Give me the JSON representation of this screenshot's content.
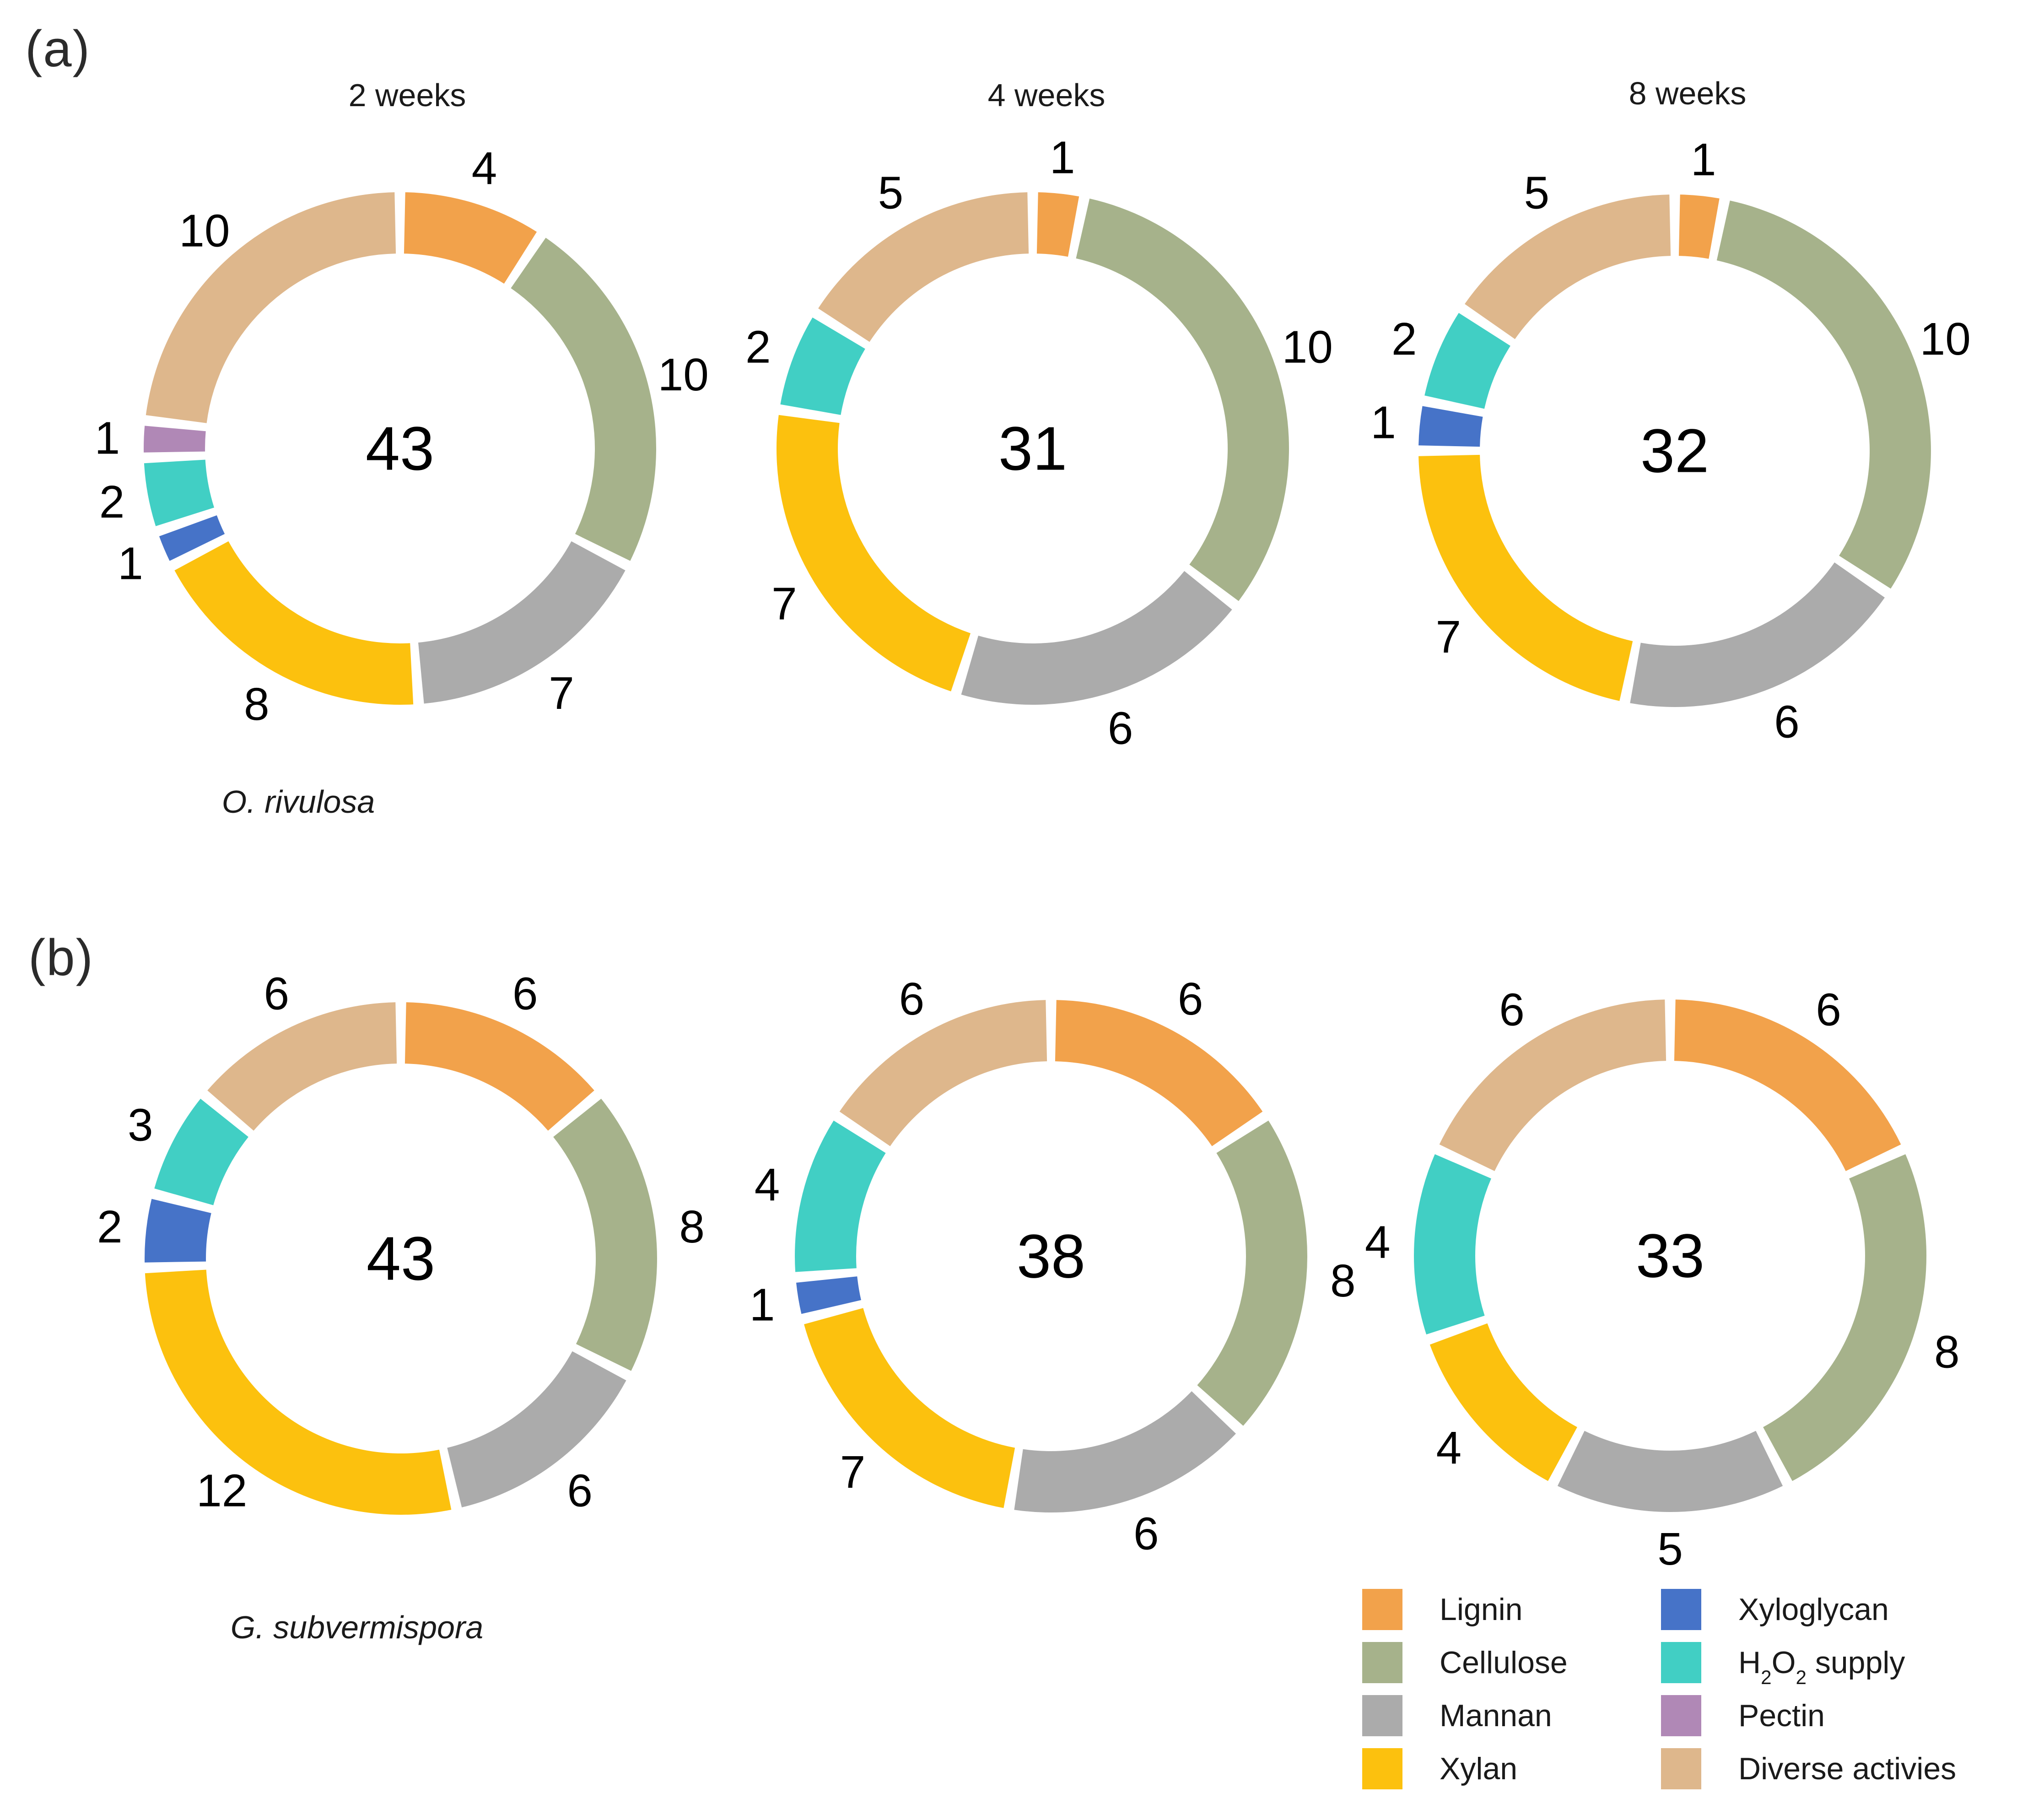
{
  "figure": {
    "panels": {
      "a": {
        "label": "(a)",
        "species": "O. rivulosa"
      },
      "b": {
        "label": "(b)",
        "species": "G. subvermispora"
      }
    }
  },
  "palette": {
    "Lignin": "#F2A24B",
    "Cellulose": "#A6B28B",
    "Mannan": "#ABABAB",
    "Xylan": "#FCC10E",
    "Xyloglycan": "#4673C8",
    "H₂O₂ supply": "#41CFC4",
    "Pectin": "#B088B6",
    "Diverse activies": "#DEB78C"
  },
  "legend": {
    "columns": [
      [
        "Lignin",
        "Cellulose",
        "Mannan",
        "Xylan"
      ],
      [
        "Xyloglycan",
        "H₂O₂ supply",
        "Pectin",
        "Diverse activies"
      ]
    ]
  },
  "chart_data": [
    {
      "type": "donut",
      "panel": "a",
      "title": "2 weeks",
      "total": 43,
      "segments": [
        {
          "category": "Lignin",
          "value": 4
        },
        {
          "category": "Cellulose",
          "value": 10
        },
        {
          "category": "Mannan",
          "value": 7
        },
        {
          "category": "Xylan",
          "value": 8
        },
        {
          "category": "Xyloglycan",
          "value": 1
        },
        {
          "category": "H₂O₂ supply",
          "value": 2
        },
        {
          "category": "Pectin",
          "value": 1
        },
        {
          "category": "Diverse activies",
          "value": 10
        }
      ]
    },
    {
      "type": "donut",
      "panel": "a",
      "title": "4 weeks",
      "total": 31,
      "segments": [
        {
          "category": "Lignin",
          "value": 1
        },
        {
          "category": "Cellulose",
          "value": 10
        },
        {
          "category": "Mannan",
          "value": 6
        },
        {
          "category": "Xylan",
          "value": 7
        },
        {
          "category": "H₂O₂ supply",
          "value": 2
        },
        {
          "category": "Diverse activies",
          "value": 5
        }
      ]
    },
    {
      "type": "donut",
      "panel": "a",
      "title": "8 weeks",
      "total": 32,
      "segments": [
        {
          "category": "Lignin",
          "value": 1
        },
        {
          "category": "Cellulose",
          "value": 10
        },
        {
          "category": "Mannan",
          "value": 6
        },
        {
          "category": "Xylan",
          "value": 7
        },
        {
          "category": "Xyloglycan",
          "value": 1
        },
        {
          "category": "H₂O₂ supply",
          "value": 2
        },
        {
          "category": "Diverse activies",
          "value": 5
        }
      ]
    },
    {
      "type": "donut",
      "panel": "b",
      "title": "",
      "total": 43,
      "segments": [
        {
          "category": "Lignin",
          "value": 6
        },
        {
          "category": "Cellulose",
          "value": 8
        },
        {
          "category": "Mannan",
          "value": 6
        },
        {
          "category": "Xylan",
          "value": 12
        },
        {
          "category": "Xyloglycan",
          "value": 2
        },
        {
          "category": "H₂O₂ supply",
          "value": 3
        },
        {
          "category": "Diverse activies",
          "value": 6
        }
      ]
    },
    {
      "type": "donut",
      "panel": "b",
      "title": "",
      "total": 38,
      "segments": [
        {
          "category": "Lignin",
          "value": 6
        },
        {
          "category": "Cellulose",
          "value": 8
        },
        {
          "category": "Mannan",
          "value": 6
        },
        {
          "category": "Xylan",
          "value": 7
        },
        {
          "category": "Xyloglycan",
          "value": 1
        },
        {
          "category": "H₂O₂ supply",
          "value": 4
        },
        {
          "category": "Diverse activies",
          "value": 6
        }
      ]
    },
    {
      "type": "donut",
      "panel": "b",
      "title": "",
      "total": 33,
      "segments": [
        {
          "category": "Lignin",
          "value": 6
        },
        {
          "category": "Cellulose",
          "value": 8
        },
        {
          "category": "Mannan",
          "value": 5
        },
        {
          "category": "Xylan",
          "value": 4
        },
        {
          "category": "H₂O₂ supply",
          "value": 4
        },
        {
          "category": "Diverse activies",
          "value": 6
        }
      ]
    }
  ]
}
